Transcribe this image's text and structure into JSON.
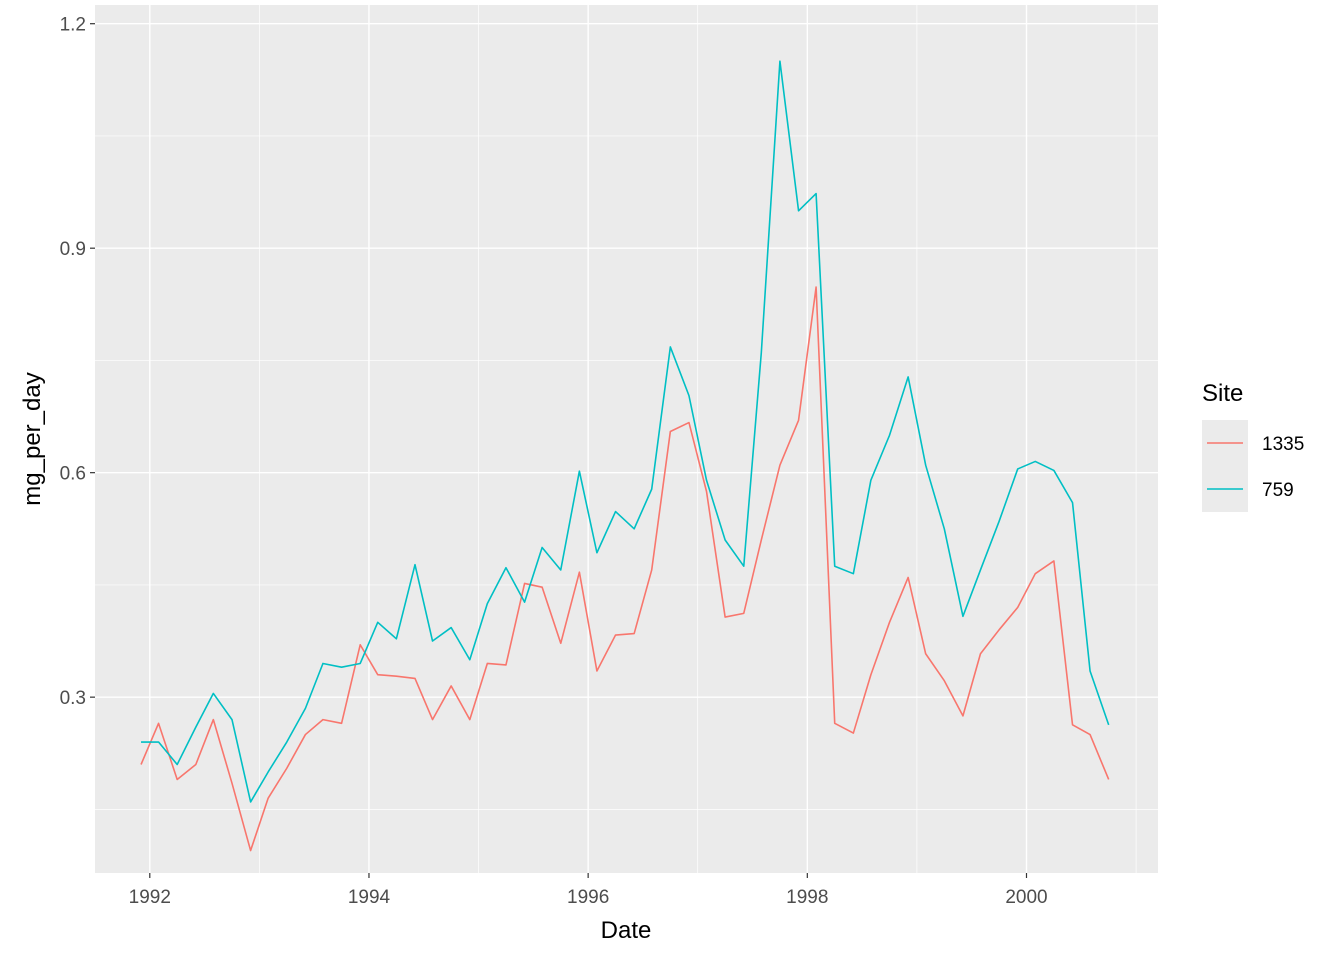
{
  "chart_data": {
    "type": "line",
    "title": "",
    "xlabel": "Date",
    "ylabel": "mg_per_day",
    "xlim": [
      1991.5,
      2001.2
    ],
    "ylim": [
      0.065,
      1.225
    ],
    "xticks": [
      1992,
      1994,
      1996,
      1998,
      2000
    ],
    "yticks": [
      0.3,
      0.6,
      0.9,
      1.2
    ],
    "ytick_labels": [
      "0.3",
      "0.6",
      "0.9",
      "1.2"
    ],
    "grid": true,
    "background": "#ebebeb",
    "legend": {
      "title": "Site",
      "position": "right"
    },
    "series": [
      {
        "name": "1335",
        "color": "#f8766d",
        "x": [
          1991.92,
          1992.08,
          1992.25,
          1992.42,
          1992.58,
          1992.75,
          1992.92,
          1993.08,
          1993.25,
          1993.42,
          1993.58,
          1993.75,
          1993.92,
          1994.08,
          1994.25,
          1994.42,
          1994.58,
          1994.75,
          1994.92,
          1995.08,
          1995.25,
          1995.42,
          1995.58,
          1995.75,
          1995.92,
          1996.08,
          1996.25,
          1996.42,
          1996.58,
          1996.75,
          1996.92,
          1997.08,
          1997.25,
          1997.42,
          1997.58,
          1997.75,
          1997.92,
          1998.08,
          1998.25,
          1998.42,
          1998.58,
          1998.75,
          1998.92,
          1999.08,
          1999.25,
          1999.42,
          1999.58,
          1999.75,
          1999.92,
          2000.08,
          2000.25,
          2000.42,
          2000.58,
          2000.75
        ],
        "values": [
          0.21,
          0.265,
          0.19,
          0.21,
          0.27,
          0.185,
          0.095,
          0.165,
          0.205,
          0.25,
          0.27,
          0.265,
          0.37,
          0.33,
          0.328,
          0.325,
          0.27,
          0.315,
          0.27,
          0.345,
          0.343,
          0.452,
          0.447,
          0.372,
          0.467,
          0.335,
          0.383,
          0.385,
          0.47,
          0.655,
          0.667,
          0.575,
          0.407,
          0.412,
          0.51,
          0.61,
          0.67,
          0.848,
          0.265,
          0.252,
          0.33,
          0.4,
          0.46,
          0.358,
          0.322,
          0.275,
          0.358,
          0.39,
          0.42,
          0.465,
          0.482,
          0.263,
          0.25,
          0.19
        ]
      },
      {
        "name": "759",
        "color": "#00bfc4",
        "x": [
          1991.92,
          1992.08,
          1992.25,
          1992.42,
          1992.58,
          1992.75,
          1992.92,
          1993.08,
          1993.25,
          1993.42,
          1993.58,
          1993.75,
          1993.92,
          1994.08,
          1994.25,
          1994.42,
          1994.58,
          1994.75,
          1994.92,
          1995.08,
          1995.25,
          1995.42,
          1995.58,
          1995.75,
          1995.92,
          1996.08,
          1996.25,
          1996.42,
          1996.58,
          1996.75,
          1996.92,
          1997.08,
          1997.25,
          1997.42,
          1997.58,
          1997.75,
          1997.92,
          1998.08,
          1998.25,
          1998.42,
          1998.58,
          1998.75,
          1998.92,
          1999.08,
          1999.25,
          1999.42,
          1999.58,
          1999.75,
          1999.92,
          2000.08,
          2000.25,
          2000.42,
          2000.58,
          2000.75
        ],
        "values": [
          0.24,
          0.24,
          0.21,
          0.26,
          0.305,
          0.27,
          0.16,
          0.2,
          0.24,
          0.285,
          0.345,
          0.34,
          0.345,
          0.4,
          0.378,
          0.477,
          0.375,
          0.393,
          0.35,
          0.425,
          0.473,
          0.427,
          0.5,
          0.47,
          0.602,
          0.493,
          0.548,
          0.525,
          0.578,
          0.768,
          0.703,
          0.59,
          0.51,
          0.475,
          0.76,
          1.15,
          0.95,
          0.973,
          0.475,
          0.465,
          0.59,
          0.65,
          0.728,
          0.61,
          0.525,
          0.408,
          0.47,
          0.535,
          0.605,
          0.615,
          0.603,
          0.56,
          0.335,
          0.263
        ]
      }
    ]
  }
}
